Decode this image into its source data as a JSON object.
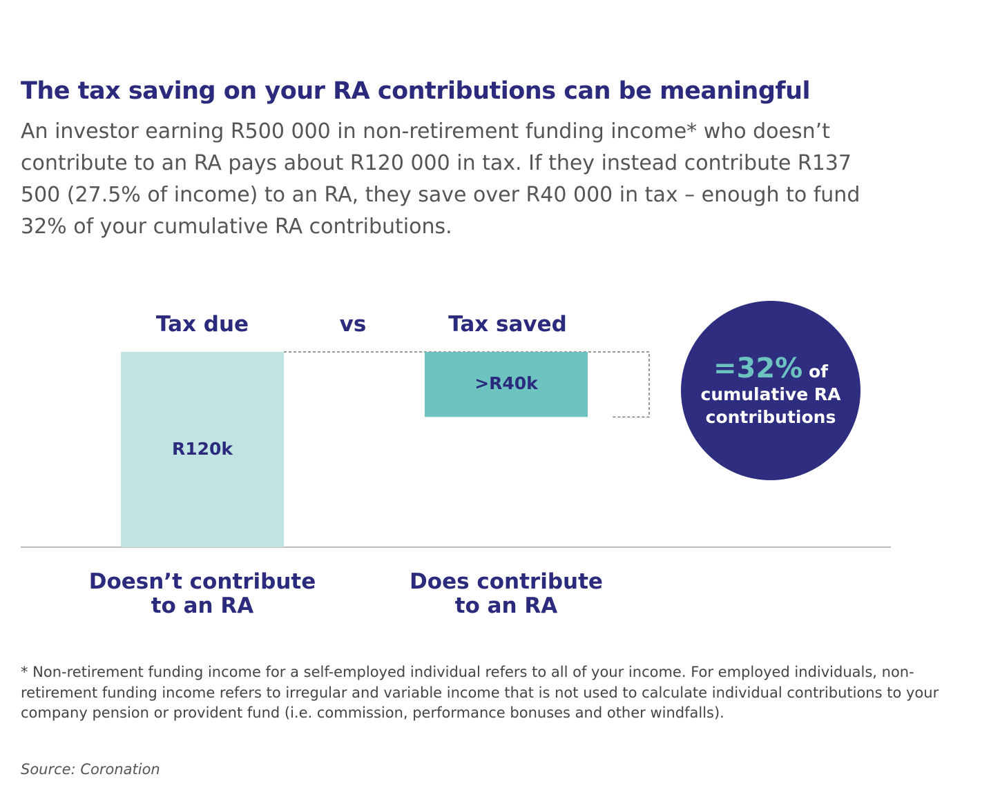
{
  "chart_data": {
    "type": "waterfall",
    "title": "The tax saving on your RA contributions can be meaningful",
    "subtitle": "An investor earning R500 000 in non-retirement funding income* who doesn’t contribute to an RA pays about R120 000 in tax. If they instead contribute R137 500 (27.5% of income) to an RA, they save over R40 000 in tax – enough to fund 32% of your cumulative RA contributions.",
    "bar_headers": [
      "Tax due",
      "Tax saved"
    ],
    "separator": "vs",
    "categories": [
      "Doesn’t contribute\nto an RA",
      "Does contribute\nto an RA"
    ],
    "values": [
      120,
      40
    ],
    "value_labels": [
      "R120k",
      ">R40k"
    ],
    "colors": [
      "#c0e4e1",
      "#6cc3c0"
    ],
    "annotation": {
      "highlight": "=32%",
      "text": "of\ncumulative RA\ncontributions",
      "color": "#2e2d80"
    },
    "footnote": "* Non-retirement funding income for a self-employed individual refers to all of your income. For employed individuals, non-retirement funding income refers to irregular and variable income that is not used to calculate individual contributions to your company pension or provident fund (i.e. commission, performance bonuses and other windfalls).",
    "source": "Source: Coronation"
  }
}
